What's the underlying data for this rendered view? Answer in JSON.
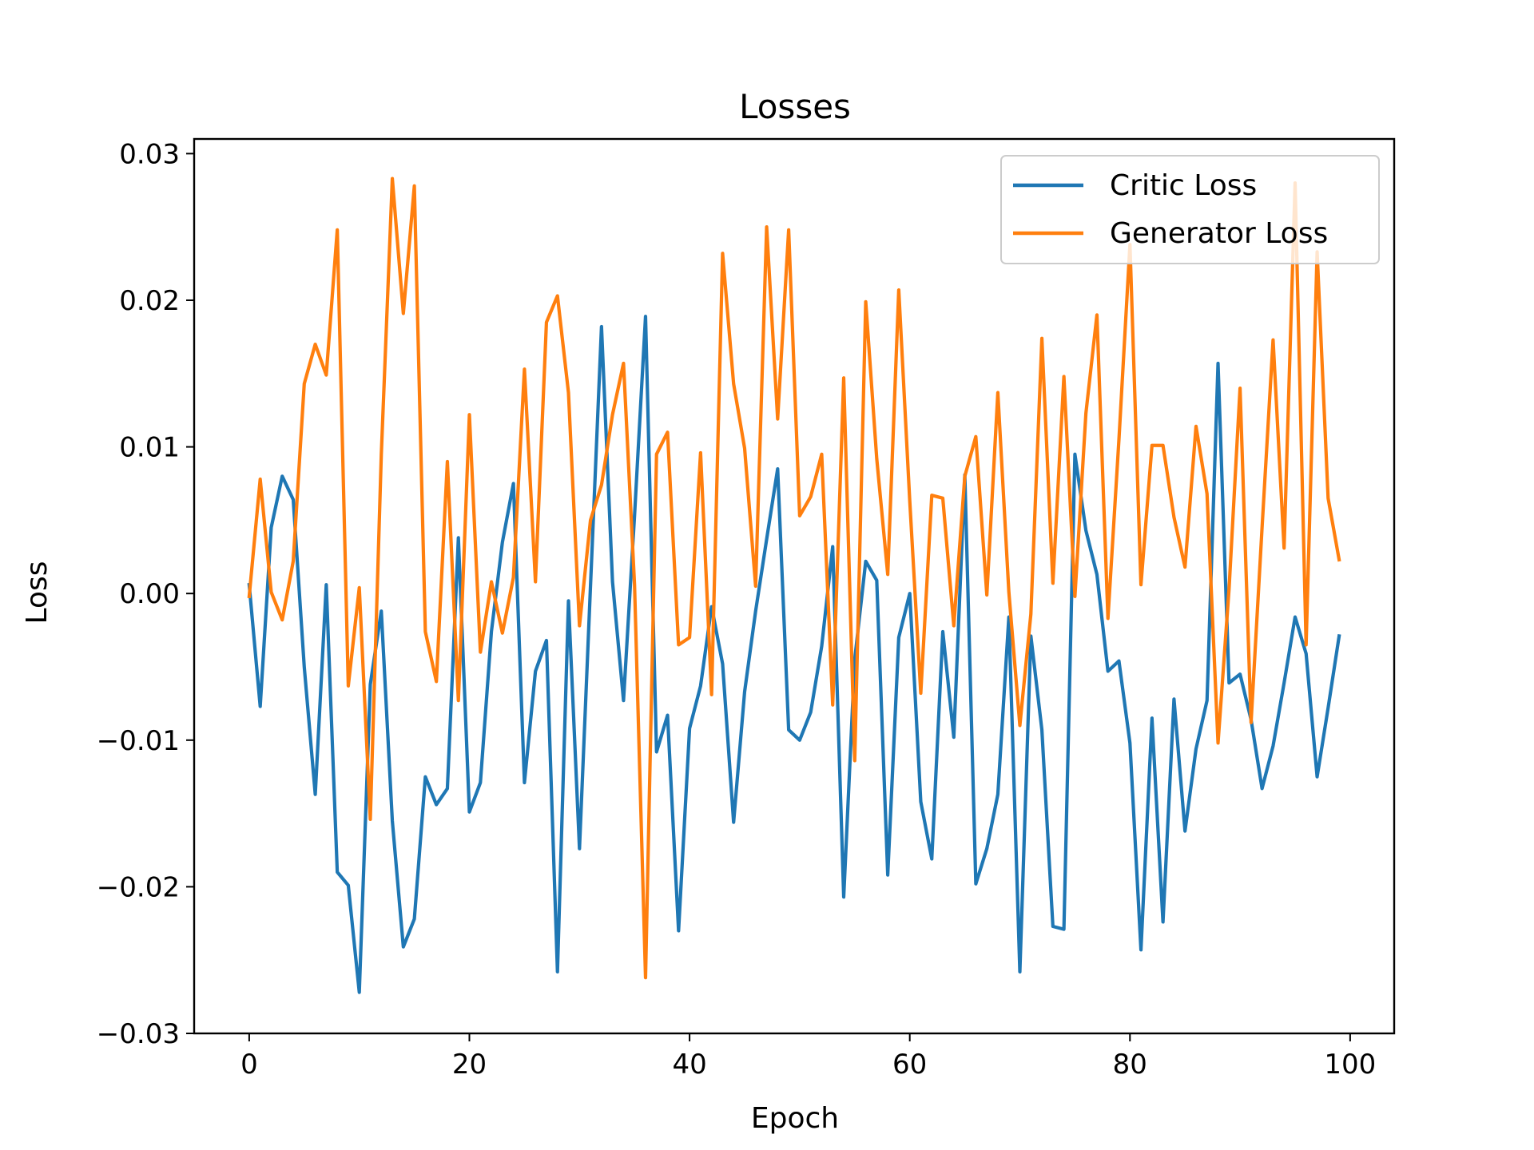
{
  "chart_data": {
    "type": "line",
    "title": "Losses",
    "xlabel": "Epoch",
    "ylabel": "Loss",
    "xlim": [
      -5,
      104
    ],
    "ylim": [
      -0.03,
      0.031
    ],
    "xticks": [
      0,
      20,
      40,
      60,
      80,
      100
    ],
    "yticks": [
      -0.03,
      -0.02,
      -0.01,
      0.0,
      0.01,
      0.02,
      0.03
    ],
    "ytick_labels": [
      "−0.03",
      "−0.02",
      "−0.01",
      "0.00",
      "0.01",
      "0.02",
      "0.03"
    ],
    "grid": false,
    "legend_position": "top-right",
    "x": [
      0,
      1,
      2,
      3,
      4,
      5,
      6,
      7,
      8,
      9,
      10,
      11,
      12,
      13,
      14,
      15,
      16,
      17,
      18,
      19,
      20,
      21,
      22,
      23,
      24,
      25,
      26,
      27,
      28,
      29,
      30,
      31,
      32,
      33,
      34,
      35,
      36,
      37,
      38,
      39,
      40,
      41,
      42,
      43,
      44,
      45,
      46,
      47,
      48,
      49,
      50,
      51,
      52,
      53,
      54,
      55,
      56,
      57,
      58,
      59,
      60,
      61,
      62,
      63,
      64,
      65,
      66,
      67,
      68,
      69,
      70,
      71,
      72,
      73,
      74,
      75,
      76,
      77,
      78,
      79,
      80,
      81,
      82,
      83,
      84,
      85,
      86,
      87,
      88,
      89,
      90,
      91,
      92,
      93,
      94,
      95,
      96,
      97,
      98,
      99
    ],
    "series": [
      {
        "name": "Critic Loss",
        "color": "#1f77b4",
        "values": [
          0.0006,
          -0.0077,
          0.0045,
          0.008,
          0.0064,
          -0.005,
          -0.0137,
          0.0006,
          -0.019,
          -0.0199,
          -0.0272,
          -0.0062,
          -0.0012,
          -0.0155,
          -0.0241,
          -0.0222,
          -0.0125,
          -0.0144,
          -0.0133,
          0.0038,
          -0.0149,
          -0.0129,
          -0.0026,
          0.0035,
          0.0075,
          -0.0129,
          -0.0053,
          -0.0032,
          -0.0258,
          -0.0005,
          -0.0174,
          0.0005,
          0.0182,
          0.0008,
          -0.0073,
          0.0053,
          0.0189,
          -0.0108,
          -0.0083,
          -0.023,
          -0.0092,
          -0.0063,
          -0.0009,
          -0.0048,
          -0.0156,
          -0.0067,
          -0.0012,
          0.0037,
          0.0085,
          -0.0093,
          -0.01,
          -0.0081,
          -0.0036,
          0.0032,
          -0.0207,
          -0.0045,
          0.0022,
          0.0009,
          -0.0192,
          -0.003,
          0.0,
          -0.0142,
          -0.0181,
          -0.0026,
          -0.0098,
          0.0081,
          -0.0198,
          -0.0174,
          -0.0137,
          -0.0016,
          -0.0258,
          -0.0029,
          -0.0093,
          -0.0227,
          -0.0229,
          0.0095,
          0.0043,
          0.0013,
          -0.0053,
          -0.0046,
          -0.0102,
          -0.0243,
          -0.0085,
          -0.0224,
          -0.0072,
          -0.0162,
          -0.0106,
          -0.0073,
          0.0157,
          -0.0061,
          -0.0055,
          -0.0086,
          -0.0133,
          -0.0104,
          -0.0061,
          -0.0016,
          -0.0041,
          -0.0125,
          -0.0078,
          -0.0029
        ]
      },
      {
        "name": "Generator Loss",
        "color": "#ff7f0e",
        "values": [
          -0.0002,
          0.0078,
          0.0001,
          -0.0018,
          0.0022,
          0.0143,
          0.017,
          0.0149,
          0.0248,
          -0.0063,
          0.0004,
          -0.0154,
          0.0095,
          0.0283,
          0.0191,
          0.0278,
          -0.0026,
          -0.006,
          0.009,
          -0.0073,
          0.0122,
          -0.004,
          0.0008,
          -0.0027,
          0.0011,
          0.0153,
          0.0008,
          0.0185,
          0.0203,
          0.0137,
          -0.0022,
          0.005,
          0.0074,
          0.0122,
          0.0157,
          0.0006,
          -0.0262,
          0.0095,
          0.011,
          -0.0035,
          -0.003,
          0.0096,
          -0.0069,
          0.0232,
          0.0143,
          0.0099,
          0.0005,
          0.025,
          0.0119,
          0.0248,
          0.0053,
          0.0066,
          0.0095,
          -0.0076,
          0.0147,
          -0.0114,
          0.0199,
          0.0092,
          0.0013,
          0.0207,
          0.0063,
          -0.0068,
          0.0067,
          0.0065,
          -0.0022,
          0.008,
          0.0107,
          -0.0001,
          0.0137,
          0.0001,
          -0.009,
          -0.0014,
          0.0174,
          0.0007,
          0.0148,
          -0.0002,
          0.0123,
          0.019,
          -0.0017,
          0.0105,
          0.0238,
          0.0006,
          0.0101,
          0.0101,
          0.0052,
          0.0018,
          0.0114,
          0.0068,
          -0.0102,
          0.0003,
          0.014,
          -0.0088,
          0.0045,
          0.0173,
          0.0031,
          0.028,
          -0.0035,
          0.0233,
          0.0065,
          0.0023
        ]
      }
    ]
  }
}
